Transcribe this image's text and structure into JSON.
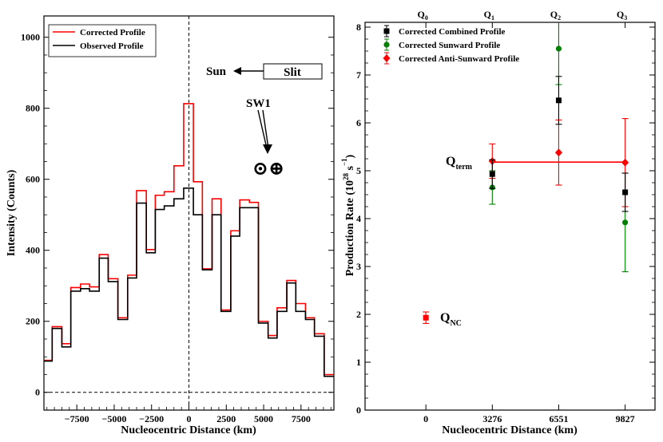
{
  "chart_data": [
    {
      "type": "step",
      "xlabel": "Nucleocentric Distance (km)",
      "ylabel": "Intensity (Counts)",
      "xlim": [
        -9700,
        9700
      ],
      "ylim": [
        -50,
        1060
      ],
      "xticks": [
        -7500,
        -5000,
        -2500,
        0,
        2500,
        5000,
        7500
      ],
      "xtick_labels": [
        "−7500",
        "−5000",
        "−2500",
        "0",
        "2500",
        "5000",
        "7500"
      ],
      "yticks": [
        0,
        200,
        400,
        600,
        800,
        1000
      ],
      "ytick_labels": [
        "0",
        "200",
        "400",
        "600",
        "800",
        "1000"
      ],
      "bin_edges": [
        -9700,
        -9150,
        -8500,
        -7900,
        -7250,
        -6650,
        -6000,
        -5400,
        -4750,
        -4100,
        -3500,
        -2850,
        -2250,
        -1650,
        -1000,
        -350,
        300,
        900,
        1550,
        2150,
        2800,
        3400,
        4050,
        4650,
        5300,
        5900,
        6550,
        7150,
        7800,
        8400,
        9050,
        9700
      ],
      "series": [
        {
          "name": "Corrected Profile",
          "color": "#ff0000",
          "values": [
            90,
            185,
            137,
            295,
            305,
            297,
            388,
            320,
            210,
            330,
            568,
            402,
            555,
            565,
            638,
            813,
            593,
            348,
            545,
            232,
            455,
            542,
            535,
            200,
            160,
            238,
            315,
            250,
            210,
            165,
            50
          ]
        },
        {
          "name": "Observed Profile",
          "color": "#000000",
          "values": [
            88,
            180,
            128,
            285,
            292,
            285,
            378,
            312,
            205,
            322,
            533,
            393,
            515,
            525,
            545,
            575,
            500,
            345,
            500,
            228,
            440,
            520,
            520,
            195,
            153,
            228,
            308,
            228,
            205,
            158,
            45
          ]
        }
      ],
      "annotations": {
        "sun_label": "Sun",
        "slit_label": "Slit",
        "sw1_label": "SW1",
        "symbols": "⊙⊕"
      }
    },
    {
      "type": "scatter",
      "xlabel": "Nucleocentric Distance (km)",
      "ylabel": "Production Rate (10",
      "ylabel_units": "28",
      "ylabel_tail": " s",
      "ylabel_exp": "−1",
      "xlim": [
        -3000,
        11300
      ],
      "ylim": [
        0,
        8.1
      ],
      "xticks": [
        0,
        3276,
        6551,
        9827
      ],
      "xtick_labels": [
        "0",
        "3276",
        "6551",
        "9827"
      ],
      "yticks": [
        0,
        1,
        2,
        3,
        4,
        5,
        6,
        7,
        8
      ],
      "ytick_labels": [
        "0",
        "1",
        "2",
        "3",
        "4",
        "5",
        "6",
        "7",
        "8"
      ],
      "top_tick_labels": [
        {
          "main": "Q",
          "sub": "0"
        },
        {
          "main": "Q",
          "sub": "1"
        },
        {
          "main": "Q",
          "sub": "2"
        },
        {
          "main": "Q",
          "sub": "3"
        }
      ],
      "series": [
        {
          "name": "Corrected Combined Profile",
          "color": "#000000",
          "marker": "square",
          "points": [
            {
              "x": 3276,
              "y": 4.93,
              "err": 0.3
            },
            {
              "x": 6551,
              "y": 6.47,
              "err": 0.5
            },
            {
              "x": 9827,
              "y": 4.55,
              "err": 0.4
            }
          ]
        },
        {
          "name": "Corrected Sunward Profile",
          "color": "#008000",
          "marker": "circle",
          "points": [
            {
              "x": 3276,
              "y": 4.65,
              "err": 0.35
            },
            {
              "x": 6551,
              "y": 7.55,
              "err": 0.75
            },
            {
              "x": 9827,
              "y": 3.92,
              "err": 1.03
            }
          ]
        },
        {
          "name": "Corrected Anti-Sunward Profile",
          "color": "#ff0000",
          "marker": "diamond",
          "points": [
            {
              "x": 3276,
              "y": 5.2,
              "err": 0.36
            },
            {
              "x": 6551,
              "y": 5.38,
              "err": 0.68
            },
            {
              "x": 9827,
              "y": 5.17,
              "err": 0.92
            }
          ]
        }
      ],
      "qnc_point": {
        "x": 0,
        "y": 1.93,
        "err": 0.12,
        "color": "#ff0000"
      },
      "qterm_line": {
        "y": 5.18,
        "x_from": 3276,
        "x_to": 9827,
        "color": "#ff0000"
      },
      "labels": {
        "qterm": {
          "main": "Q",
          "sub": "term"
        },
        "qnc": {
          "main": "Q",
          "sub": "NC"
        }
      }
    }
  ]
}
